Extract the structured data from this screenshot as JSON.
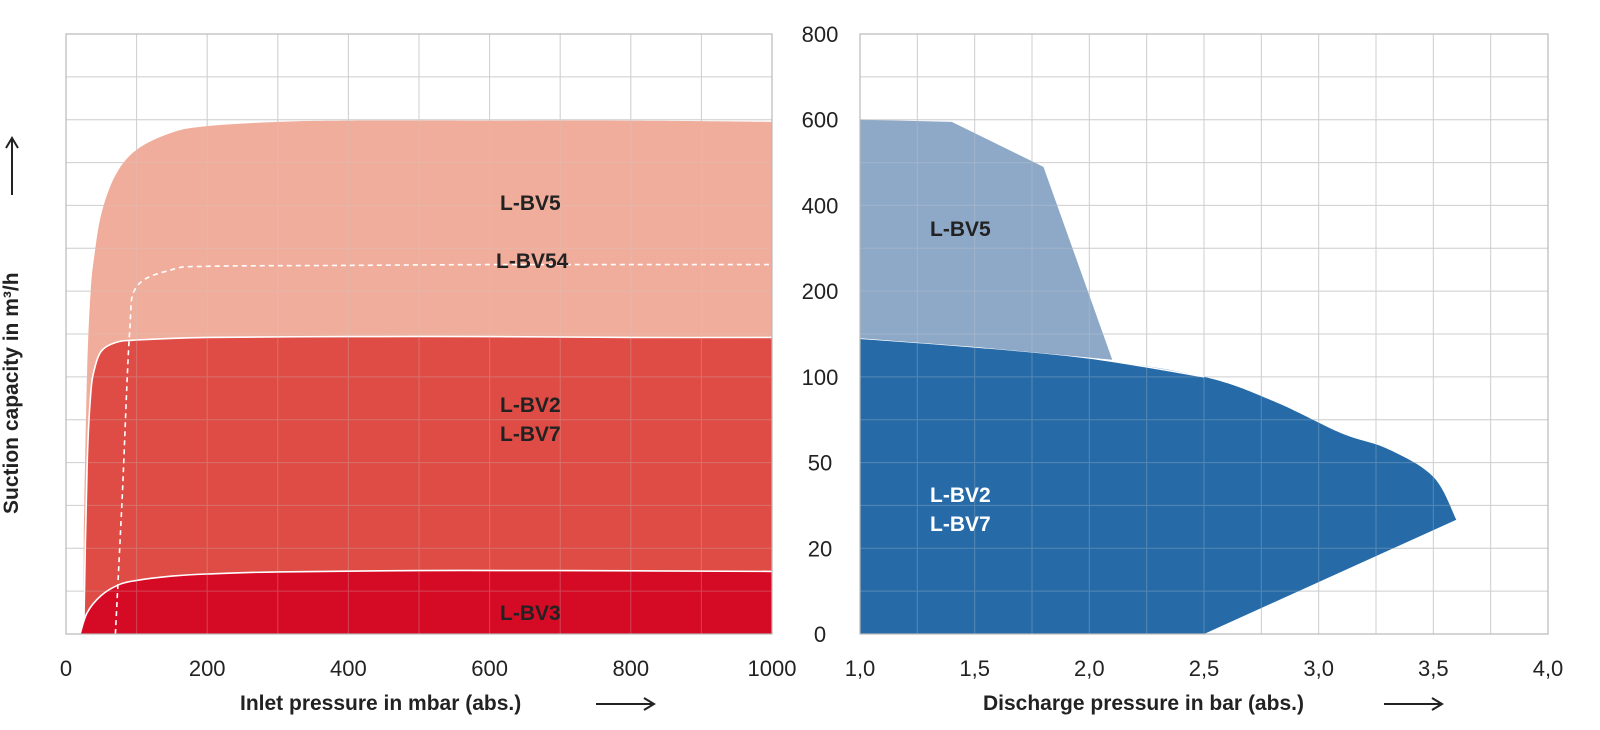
{
  "colors": {
    "lbv5_left": "#f0ad9b",
    "lbv2_left": "#de4c45",
    "lbv3_left": "#d50b25",
    "lbv5_right": "#8ea9c8",
    "lbv2_right": "#266ba8",
    "grid": "#cfcfcf",
    "dark_text": "#222222",
    "light_text": "#ffffff"
  },
  "chart_data": [
    {
      "type": "area",
      "position": "left",
      "xlabel": "Inlet pressure in mbar (abs.)",
      "ylabel": "Suction capacity  in m³/h",
      "x_ticks": [
        "0",
        "200",
        "400",
        "600",
        "800",
        "1000"
      ],
      "xlim": [
        0,
        1000
      ],
      "y_ticks": [
        "0",
        "20",
        "50",
        "100",
        "200",
        "400",
        "600",
        "800"
      ],
      "y_scale": "nonlinear",
      "ylim": [
        0,
        800
      ],
      "grid": true,
      "series": [
        {
          "name": "L-BV5",
          "labels": [
            "L-BV5"
          ],
          "x": [
            25,
            30,
            35,
            40,
            50,
            70,
            100,
            150,
            200,
            300,
            400,
            600,
            800,
            1000
          ],
          "y": [
            25,
            110,
            200,
            280,
            380,
            470,
            530,
            570,
            585,
            595,
            598,
            598,
            598,
            595
          ]
        },
        {
          "name": "L-BV54",
          "labels": [
            "L-BV54"
          ],
          "style": "dashed",
          "x": [
            70,
            80,
            90,
            100,
            150,
            200,
            400,
            600,
            800,
            1000
          ],
          "y": [
            0,
            40,
            150,
            210,
            250,
            258,
            260,
            262,
            262,
            262
          ]
        },
        {
          "name": "L-BV2 / L-BV7",
          "labels": [
            "L-BV2",
            "L-BV7"
          ],
          "x": [
            25,
            30,
            35,
            40,
            50,
            70,
            100,
            200,
            400,
            600,
            800,
            1000
          ],
          "y": [
            0,
            50,
            90,
            108,
            130,
            140,
            143,
            146,
            147,
            147,
            146,
            146
          ]
        },
        {
          "name": "L-BV3",
          "labels": [
            "L-BV3"
          ],
          "x": [
            20,
            30,
            50,
            75,
            100,
            150,
            200,
            300,
            500,
            700,
            1000
          ],
          "y": [
            0,
            5,
            9,
            11.5,
            12.5,
            13.5,
            14,
            14.5,
            14.8,
            14.8,
            14.6
          ]
        }
      ]
    },
    {
      "type": "area",
      "position": "right",
      "xlabel": "Discharge pressure in bar (abs.)",
      "x_ticks": [
        "1,0",
        "1,5",
        "2,0",
        "2,5",
        "3,0",
        "3,5",
        "4,0"
      ],
      "xlim": [
        1.0,
        4.0
      ],
      "y_ticks": [
        "0",
        "20",
        "50",
        "100",
        "200",
        "400",
        "600",
        "800"
      ],
      "y_scale": "nonlinear",
      "ylim": [
        0,
        800
      ],
      "grid": true,
      "series": [
        {
          "name": "L-BV5",
          "labels": [
            "L-BV5"
          ],
          "x": [
            1.0,
            1.4,
            1.8,
            2.1
          ],
          "y": [
            600,
            595,
            490,
            120
          ],
          "note_outline_bottom": "L-BV2 / L-BV7 upper boundary"
        },
        {
          "name": "L-BV2 / L-BV7",
          "labels": [
            "L-BV2",
            "L-BV7"
          ],
          "x": [
            1.0,
            1.5,
            2.0,
            2.5,
            2.8,
            3.1,
            3.3,
            3.5,
            3.6,
            2.5,
            1.0
          ],
          "y": [
            145,
            135,
            122,
            100,
            86,
            67,
            58,
            45,
            30,
            0,
            0
          ]
        }
      ]
    }
  ]
}
